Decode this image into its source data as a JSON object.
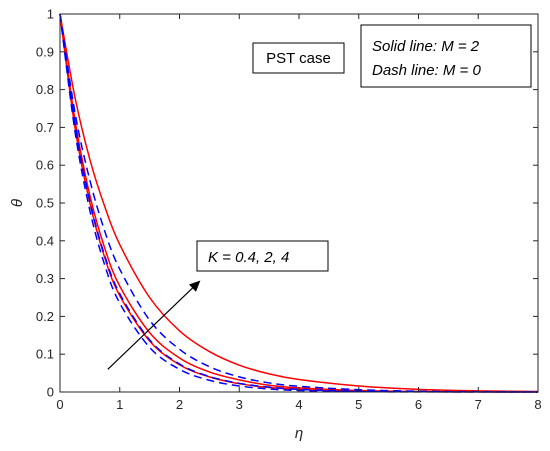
{
  "chart_data": {
    "type": "line",
    "xlabel": "η",
    "ylabel": "θ",
    "xlim": [
      0,
      8
    ],
    "ylim": [
      0,
      1
    ],
    "xticks": [
      0,
      1,
      2,
      3,
      4,
      5,
      6,
      7,
      8
    ],
    "yticks": [
      0,
      0.1,
      0.2,
      0.3,
      0.4,
      0.5,
      0.6,
      0.7,
      0.8,
      0.9,
      1
    ],
    "xtick_labels": [
      "0",
      "1",
      "2",
      "3",
      "4",
      "5",
      "6",
      "7",
      "8"
    ],
    "ytick_labels": [
      "0",
      "0.1",
      "0.2",
      "0.3",
      "0.4",
      "0.5",
      "0.6",
      "0.7",
      "0.8",
      "0.9",
      "1"
    ],
    "grid": false,
    "colors": {
      "solid": "#ff0000",
      "dash": "#0000ff",
      "axis": "#262626"
    },
    "series": [
      {
        "style": "solid",
        "color": "#ff0000",
        "x": [
          0,
          0.25,
          0.5,
          0.75,
          1,
          1.5,
          2,
          2.5,
          3,
          3.5,
          4,
          5,
          6,
          7,
          8
        ],
        "y": [
          1,
          0.72,
          0.52,
          0.38,
          0.28,
          0.157,
          0.09,
          0.053,
          0.032,
          0.018,
          0.011,
          0.004,
          0.0014,
          0.0005,
          0.0002
        ]
      },
      {
        "style": "solid",
        "color": "#ff0000",
        "x": [
          0,
          0.25,
          0.5,
          0.75,
          1,
          1.5,
          2,
          2.5,
          3,
          3.5,
          4,
          5,
          6,
          7,
          8
        ],
        "y": [
          1,
          0.7,
          0.5,
          0.355,
          0.255,
          0.135,
          0.072,
          0.04,
          0.022,
          0.012,
          0.007,
          0.002,
          0.0007,
          0.0002,
          0.0001
        ]
      },
      {
        "style": "solid",
        "color": "#ff0000",
        "x": [
          0,
          0.25,
          0.5,
          0.75,
          1,
          1.5,
          2,
          2.5,
          3,
          3.5,
          4,
          5,
          6,
          7,
          8
        ],
        "y": [
          1,
          0.78,
          0.615,
          0.49,
          0.39,
          0.25,
          0.162,
          0.107,
          0.071,
          0.048,
          0.033,
          0.016,
          0.007,
          0.003,
          0.0012
        ]
      },
      {
        "style": "dash",
        "color": "#0000ff",
        "x": [
          0,
          0.25,
          0.5,
          0.75,
          1,
          1.5,
          2,
          2.5,
          3,
          3.5,
          4,
          5,
          6,
          7,
          8
        ],
        "y": [
          1,
          0.69,
          0.48,
          0.335,
          0.235,
          0.118,
          0.06,
          0.031,
          0.016,
          0.008,
          0.004,
          0.001,
          0.0003,
          0.0001,
          0
        ]
      },
      {
        "style": "dash",
        "color": "#0000ff",
        "x": [
          0,
          0.25,
          0.5,
          0.75,
          1,
          1.5,
          2,
          2.5,
          3,
          3.5,
          4,
          5,
          6,
          7,
          8
        ],
        "y": [
          1,
          0.71,
          0.505,
          0.36,
          0.26,
          0.138,
          0.074,
          0.041,
          0.023,
          0.013,
          0.007,
          0.002,
          0.0007,
          0.0002,
          0
        ]
      },
      {
        "style": "dash",
        "color": "#0000ff",
        "x": [
          0,
          0.25,
          0.5,
          0.75,
          1,
          1.5,
          2,
          2.5,
          3,
          3.5,
          4,
          5,
          6,
          7,
          8
        ],
        "y": [
          1,
          0.74,
          0.56,
          0.425,
          0.325,
          0.19,
          0.113,
          0.067,
          0.04,
          0.024,
          0.015,
          0.006,
          0.002,
          0.0008,
          0.0003
        ]
      }
    ],
    "annotations": {
      "pst_case": "PST case",
      "legend_line1": "Solid line: M = 2",
      "legend_line2": "Dash line: M = 0",
      "k_label": "K = 0.4, 2, 4",
      "arrow": {
        "from": [
          0.8,
          0.06
        ],
        "to": [
          2.35,
          0.295
        ]
      }
    }
  }
}
